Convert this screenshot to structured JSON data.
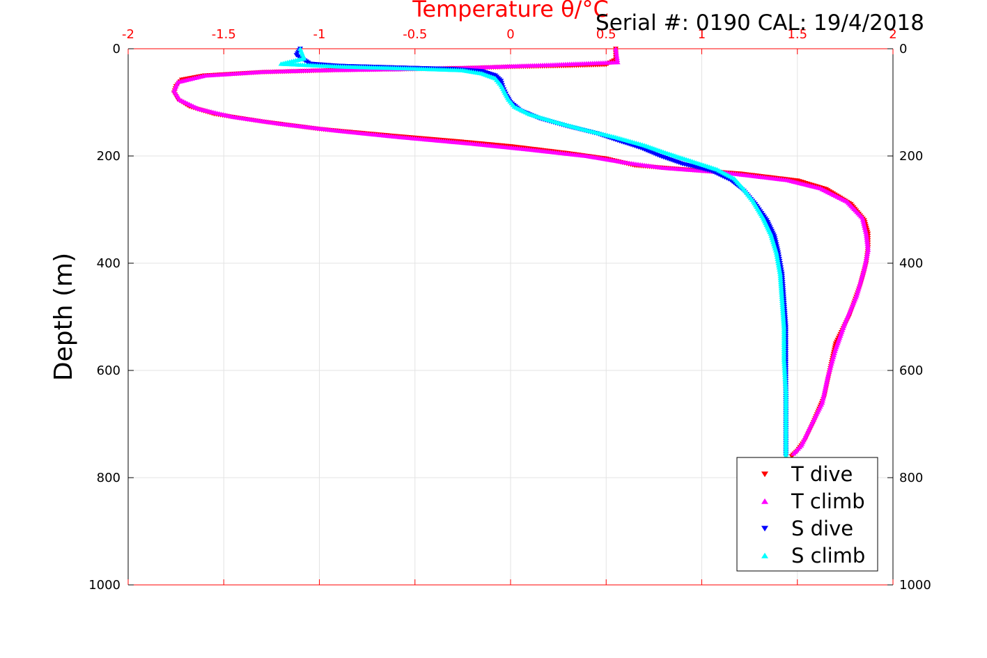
{
  "chart_data": {
    "type": "scatter",
    "title_top": "Temperature θ/°C",
    "serial_label": "Serial #: 0190  CAL: 19/4/2018",
    "ylabel": "Depth (m)",
    "xlim": [
      -2,
      2
    ],
    "ylim": [
      0,
      1000
    ],
    "y_reversed": true,
    "x_axis_position": "top",
    "x_ticks": [
      -2,
      -1.5,
      -1,
      -0.5,
      0,
      0.5,
      1,
      1.5,
      2
    ],
    "x_tick_labels": [
      "-2",
      "-1.5",
      "-1",
      "-0.5",
      "0",
      "0.5",
      "1",
      "1.5",
      "2"
    ],
    "y_ticks": [
      0,
      200,
      400,
      600,
      800,
      1000
    ],
    "y_tick_labels": [
      "0",
      "200",
      "400",
      "600",
      "800",
      "1000"
    ],
    "grid": true,
    "legend_position": "bottom-right",
    "colors": {
      "t_dive": "#ff0000",
      "t_climb": "#ff00ff",
      "s_dive": "#0000ff",
      "s_climb": "#00ffff",
      "axis_top": "#ff0000"
    },
    "series": [
      {
        "name": "T dive",
        "marker": "triangle-down",
        "color": "#ff0000",
        "points": [
          [
            0.55,
            0
          ],
          [
            0.55,
            20
          ],
          [
            0.5,
            30
          ],
          [
            0.3,
            32
          ],
          [
            0.0,
            34
          ],
          [
            -0.2,
            36
          ],
          [
            -0.5,
            38
          ],
          [
            -0.9,
            40
          ],
          [
            -1.3,
            44
          ],
          [
            -1.6,
            50
          ],
          [
            -1.72,
            58
          ],
          [
            -1.75,
            70
          ],
          [
            -1.76,
            82
          ],
          [
            -1.74,
            95
          ],
          [
            -1.68,
            108
          ],
          [
            -1.55,
            122
          ],
          [
            -1.3,
            136
          ],
          [
            -1.0,
            150
          ],
          [
            -0.6,
            163
          ],
          [
            -0.3,
            172
          ],
          [
            0.0,
            182
          ],
          [
            0.3,
            195
          ],
          [
            0.5,
            205
          ],
          [
            0.65,
            218
          ],
          [
            0.9,
            225
          ],
          [
            1.2,
            233
          ],
          [
            1.5,
            246
          ],
          [
            1.65,
            262
          ],
          [
            1.78,
            290
          ],
          [
            1.85,
            320
          ],
          [
            1.87,
            345
          ],
          [
            1.87,
            370
          ],
          [
            1.86,
            400
          ],
          [
            1.83,
            440
          ],
          [
            1.77,
            500
          ],
          [
            1.7,
            550
          ],
          [
            1.67,
            600
          ],
          [
            1.64,
            650
          ],
          [
            1.58,
            700
          ],
          [
            1.54,
            730
          ],
          [
            1.5,
            750
          ],
          [
            1.47,
            760
          ]
        ]
      },
      {
        "name": "T climb",
        "marker": "triangle-up",
        "color": "#ff00ff",
        "points": [
          [
            0.55,
            0
          ],
          [
            0.56,
            25
          ],
          [
            0.2,
            30
          ],
          [
            -0.2,
            35
          ],
          [
            -0.6,
            38
          ],
          [
            -1.0,
            40
          ],
          [
            -1.3,
            43
          ],
          [
            -1.6,
            50
          ],
          [
            -1.74,
            62
          ],
          [
            -1.76,
            78
          ],
          [
            -1.73,
            95
          ],
          [
            -1.63,
            112
          ],
          [
            -1.45,
            127
          ],
          [
            -1.2,
            140
          ],
          [
            -0.9,
            153
          ],
          [
            -0.6,
            164
          ],
          [
            -0.2,
            177
          ],
          [
            0.1,
            188
          ],
          [
            0.4,
            200
          ],
          [
            0.6,
            212
          ],
          [
            0.8,
            222
          ],
          [
            1.1,
            230
          ],
          [
            1.45,
            245
          ],
          [
            1.62,
            260
          ],
          [
            1.76,
            285
          ],
          [
            1.84,
            315
          ],
          [
            1.86,
            345
          ],
          [
            1.87,
            375
          ],
          [
            1.85,
            410
          ],
          [
            1.81,
            460
          ],
          [
            1.75,
            510
          ],
          [
            1.7,
            560
          ],
          [
            1.66,
            610
          ],
          [
            1.63,
            660
          ],
          [
            1.56,
            710
          ],
          [
            1.52,
            740
          ],
          [
            1.48,
            755
          ]
        ]
      },
      {
        "name": "S dive",
        "marker": "triangle-down",
        "color": "#0000ff",
        "points": [
          [
            -1.1,
            0
          ],
          [
            -1.12,
            12
          ],
          [
            -1.05,
            28
          ],
          [
            -0.9,
            32
          ],
          [
            -0.6,
            35
          ],
          [
            -0.3,
            38
          ],
          [
            -0.15,
            42
          ],
          [
            -0.08,
            50
          ],
          [
            -0.05,
            60
          ],
          [
            -0.04,
            72
          ],
          [
            -0.02,
            88
          ],
          [
            0.0,
            100
          ],
          [
            0.05,
            115
          ],
          [
            0.15,
            130
          ],
          [
            0.3,
            145
          ],
          [
            0.45,
            158
          ],
          [
            0.55,
            170
          ],
          [
            0.68,
            185
          ],
          [
            0.78,
            200
          ],
          [
            0.9,
            215
          ],
          [
            1.05,
            228
          ],
          [
            1.15,
            245
          ],
          [
            1.22,
            265
          ],
          [
            1.28,
            290
          ],
          [
            1.34,
            320
          ],
          [
            1.38,
            350
          ],
          [
            1.4,
            380
          ],
          [
            1.42,
            420
          ],
          [
            1.43,
            470
          ],
          [
            1.44,
            520
          ],
          [
            1.44,
            580
          ],
          [
            1.44,
            640
          ],
          [
            1.44,
            700
          ],
          [
            1.44,
            760
          ]
        ]
      },
      {
        "name": "S climb",
        "marker": "triangle-up",
        "color": "#00ffff",
        "points": [
          [
            -1.1,
            0
          ],
          [
            -1.08,
            18
          ],
          [
            -1.2,
            28
          ],
          [
            -0.9,
            33
          ],
          [
            -0.5,
            37
          ],
          [
            -0.25,
            40
          ],
          [
            -0.15,
            46
          ],
          [
            -0.08,
            55
          ],
          [
            -0.05,
            68
          ],
          [
            -0.03,
            82
          ],
          [
            -0.01,
            95
          ],
          [
            0.02,
            108
          ],
          [
            0.1,
            122
          ],
          [
            0.25,
            138
          ],
          [
            0.4,
            152
          ],
          [
            0.55,
            165
          ],
          [
            0.7,
            180
          ],
          [
            0.82,
            195
          ],
          [
            0.95,
            210
          ],
          [
            1.08,
            225
          ],
          [
            1.17,
            242
          ],
          [
            1.22,
            262
          ],
          [
            1.27,
            285
          ],
          [
            1.32,
            315
          ],
          [
            1.36,
            345
          ],
          [
            1.39,
            380
          ],
          [
            1.41,
            420
          ],
          [
            1.42,
            470
          ],
          [
            1.43,
            520
          ],
          [
            1.43,
            580
          ],
          [
            1.44,
            640
          ],
          [
            1.44,
            700
          ],
          [
            1.44,
            760
          ]
        ]
      }
    ]
  }
}
